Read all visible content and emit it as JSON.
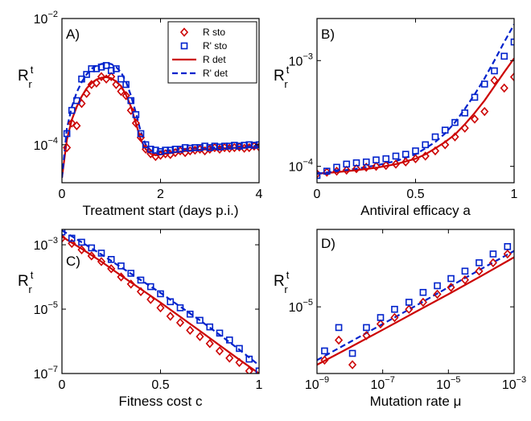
{
  "colors": {
    "R": "#cc0000",
    "Rprime": "#0022cc"
  },
  "legend": {
    "entries": [
      {
        "key": "r_sto",
        "label": "R sto"
      },
      {
        "key": "rp_sto",
        "label": "R' sto"
      },
      {
        "key": "r_det",
        "label": "R det"
      },
      {
        "key": "rp_det",
        "label": "R' det"
      }
    ]
  },
  "chart_data": [
    {
      "panel": "A)",
      "type": "scatter",
      "xlabel": "Treatment start (days p.i.)",
      "ylabel_main": "R",
      "ylabel_sup": "t",
      "ylabel_sub": "r",
      "xscale": "linear",
      "yscale": "log",
      "xlim": [
        0,
        4
      ],
      "ylim": [
        2.5e-05,
        0.01
      ],
      "xticks": [
        0,
        2,
        4
      ],
      "xticklabels": [
        "0",
        "2",
        "4"
      ],
      "yticks": [
        0.0001,
        0.01
      ],
      "yticklabels": [
        "10^-4",
        "10^-2"
      ],
      "legend_position": "top-right",
      "series": [
        {
          "key": "r_sto",
          "marker": "diamond",
          "x": [
            0.1,
            0.2,
            0.3,
            0.4,
            0.5,
            0.6,
            0.7,
            0.8,
            0.9,
            1.0,
            1.1,
            1.2,
            1.3,
            1.4,
            1.5,
            1.6,
            1.7,
            1.8,
            1.9,
            2.0,
            2.1,
            2.2,
            2.3,
            2.4,
            2.5,
            2.6,
            2.7,
            2.8,
            2.9,
            3.0,
            3.1,
            3.2,
            3.3,
            3.4,
            3.5,
            3.6,
            3.7,
            3.8,
            3.9,
            4.0
          ],
          "y": [
            9e-05,
            0.00022,
            0.0002,
            0.00045,
            0.00065,
            0.0009,
            0.00095,
            0.0012,
            0.0011,
            0.0012,
            0.0009,
            0.0007,
            0.0006,
            0.00035,
            0.00022,
            0.00013,
            8.5e-05,
            7.2e-05,
            6.5e-05,
            6.8e-05,
            7.2e-05,
            7e-05,
            7.5e-05,
            8e-05,
            7.5e-05,
            8e-05,
            8.2e-05,
            8.5e-05,
            8e-05,
            8.5e-05,
            9e-05,
            8.5e-05,
            9e-05,
            8.8e-05,
            9e-05,
            9.2e-05,
            8.8e-05,
            9e-05,
            9.5e-05,
            9.2e-05
          ]
        },
        {
          "key": "rp_sto",
          "marker": "square",
          "x": [
            0.1,
            0.2,
            0.3,
            0.4,
            0.5,
            0.6,
            0.7,
            0.8,
            0.9,
            1.0,
            1.1,
            1.2,
            1.3,
            1.4,
            1.5,
            1.6,
            1.7,
            1.8,
            1.9,
            2.0,
            2.1,
            2.2,
            2.3,
            2.4,
            2.5,
            2.6,
            2.7,
            2.8,
            2.9,
            3.0,
            3.1,
            3.2,
            3.3,
            3.4,
            3.5,
            3.6,
            3.7,
            3.8,
            3.9,
            4.0
          ],
          "y": [
            0.00015,
            0.00035,
            0.0005,
            0.0011,
            0.0013,
            0.0016,
            0.0016,
            0.0017,
            0.0018,
            0.0015,
            0.0016,
            0.0011,
            0.0009,
            0.0005,
            0.0003,
            0.00015,
            0.0001,
            8.5e-05,
            8.2e-05,
            7.8e-05,
            8.2e-05,
            8.2e-05,
            8.5e-05,
            8.5e-05,
            9e-05,
            8.8e-05,
            9e-05,
            9e-05,
            9.5e-05,
            9e-05,
            9.5e-05,
            9.2e-05,
            9.5e-05,
            9.5e-05,
            9.8e-05,
            9.5e-05,
            9.8e-05,
            0.0001,
            9.8e-05,
            0.0001
          ]
        },
        {
          "key": "r_det",
          "marker": "line-solid",
          "x": [
            0,
            0.1,
            0.2,
            0.3,
            0.4,
            0.5,
            0.6,
            0.7,
            0.8,
            0.9,
            1.0,
            1.1,
            1.2,
            1.3,
            1.4,
            1.5,
            1.6,
            1.7,
            1.8,
            1.9,
            2.0,
            2.2,
            2.4,
            2.6,
            2.8,
            3.0,
            3.2,
            3.4,
            3.6,
            3.8,
            4.0
          ],
          "y": [
            3e-05,
            0.00012,
            0.00025,
            0.0004,
            0.00058,
            0.00078,
            0.00095,
            0.00108,
            0.00115,
            0.00118,
            0.00113,
            0.001,
            0.00085,
            0.00062,
            0.0004,
            0.00022,
            0.00012,
            8.5e-05,
            7.2e-05,
            6.8e-05,
            7e-05,
            7.4e-05,
            7.8e-05,
            8.1e-05,
            8.3e-05,
            8.5e-05,
            8.7e-05,
            8.9e-05,
            9e-05,
            9.1e-05,
            9.2e-05
          ]
        },
        {
          "key": "rp_det",
          "marker": "line-dashed",
          "x": [
            0,
            0.1,
            0.2,
            0.3,
            0.4,
            0.5,
            0.6,
            0.7,
            0.8,
            0.9,
            1.0,
            1.1,
            1.2,
            1.3,
            1.4,
            1.5,
            1.6,
            1.7,
            1.8,
            1.9,
            2.0,
            2.2,
            2.4,
            2.6,
            2.8,
            3.0,
            3.2,
            3.4,
            3.6,
            3.8,
            4.0
          ],
          "y": [
            3e-05,
            0.00018,
            0.0004,
            0.00068,
            0.00098,
            0.0013,
            0.0016,
            0.0018,
            0.0019,
            0.00195,
            0.0019,
            0.0017,
            0.0014,
            0.001,
            0.0006,
            0.00032,
            0.00016,
            0.0001,
            8.2e-05,
            7.8e-05,
            7.9e-05,
            8.2e-05,
            8.5e-05,
            8.7e-05,
            8.9e-05,
            9e-05,
            9.1e-05,
            9.3e-05,
            9.4e-05,
            9.5e-05,
            9.6e-05
          ]
        }
      ]
    },
    {
      "panel": "B)",
      "type": "scatter",
      "xlabel": "Antiviral efficacy a",
      "ylabel_main": "R",
      "ylabel_sup": "t",
      "ylabel_sub": "r",
      "xscale": "linear",
      "yscale": "log",
      "xlim": [
        0,
        1
      ],
      "ylim": [
        7e-05,
        0.0025
      ],
      "xticks": [
        0,
        0.5,
        1
      ],
      "xticklabels": [
        "0",
        "0.5",
        "1"
      ],
      "yticks": [
        0.0001,
        0.001
      ],
      "yticklabels": [
        "10^-4",
        "10^-3"
      ],
      "series": [
        {
          "key": "r_sto",
          "marker": "diamond",
          "x": [
            0,
            0.05,
            0.1,
            0.15,
            0.2,
            0.25,
            0.3,
            0.35,
            0.4,
            0.45,
            0.5,
            0.55,
            0.6,
            0.65,
            0.7,
            0.75,
            0.8,
            0.85,
            0.9,
            0.95,
            1.0
          ],
          "y": [
            8.5e-05,
            8.8e-05,
            9e-05,
            9.2e-05,
            9.5e-05,
            9.8e-05,
            0.0001,
            0.000102,
            0.000105,
            0.00011,
            0.000118,
            0.000125,
            0.00014,
            0.00016,
            0.00019,
            0.00023,
            0.00028,
            0.00033,
            0.00065,
            0.00055,
            0.0007
          ]
        },
        {
          "key": "rp_sto",
          "marker": "square",
          "x": [
            0,
            0.05,
            0.1,
            0.15,
            0.2,
            0.25,
            0.3,
            0.35,
            0.4,
            0.45,
            0.5,
            0.55,
            0.6,
            0.65,
            0.7,
            0.75,
            0.8,
            0.85,
            0.9,
            0.95,
            1.0
          ],
          "y": [
            8.2e-05,
            9e-05,
            9.8e-05,
            0.000105,
            0.000108,
            0.00011,
            0.000115,
            0.000118,
            0.000125,
            0.00013,
            0.00014,
            0.00016,
            0.00019,
            0.00022,
            0.00026,
            0.00032,
            0.00045,
            0.0006,
            0.0008,
            0.0011,
            0.0015
          ]
        },
        {
          "key": "r_det",
          "marker": "line-solid",
          "x": [
            0,
            0.1,
            0.2,
            0.3,
            0.4,
            0.5,
            0.55,
            0.6,
            0.65,
            0.7,
            0.75,
            0.8,
            0.85,
            0.9,
            0.95,
            1.0
          ],
          "y": [
            8.5e-05,
            8.8e-05,
            9.2e-05,
            9.7e-05,
            0.000105,
            0.000118,
            0.00013,
            0.000148,
            0.00017,
            0.0002,
            0.00025,
            0.00032,
            0.00042,
            0.00057,
            0.00078,
            0.00105
          ]
        },
        {
          "key": "rp_det",
          "marker": "line-dashed",
          "x": [
            0,
            0.1,
            0.2,
            0.3,
            0.4,
            0.5,
            0.55,
            0.6,
            0.65,
            0.7,
            0.75,
            0.8,
            0.85,
            0.9,
            0.95,
            1.0
          ],
          "y": [
            8.5e-05,
            9e-05,
            9.5e-05,
            0.000102,
            0.000112,
            0.00013,
            0.000148,
            0.00017,
            0.000205,
            0.00026,
            0.00035,
            0.00048,
            0.00068,
            0.001,
            0.0015,
            0.0022
          ]
        }
      ]
    },
    {
      "panel": "C)",
      "type": "scatter",
      "xlabel": "Fitness cost c",
      "ylabel_main": "R",
      "ylabel_sup": "t",
      "ylabel_sub": "r",
      "xscale": "linear",
      "yscale": "log",
      "xlim": [
        0,
        1
      ],
      "ylim": [
        1e-07,
        0.003
      ],
      "xticks": [
        0,
        0.5,
        1
      ],
      "xticklabels": [
        "0",
        "0.5",
        "1"
      ],
      "yticks": [
        1e-07,
        1e-05,
        0.001
      ],
      "yticklabels": [
        "10^-7",
        "10^-5",
        "10^-3"
      ],
      "series": [
        {
          "key": "r_sto",
          "marker": "diamond",
          "x": [
            0,
            0.05,
            0.1,
            0.15,
            0.2,
            0.25,
            0.3,
            0.35,
            0.4,
            0.45,
            0.5,
            0.55,
            0.6,
            0.65,
            0.7,
            0.75,
            0.8,
            0.85,
            0.9,
            0.95
          ],
          "y": [
            0.0016,
            0.0011,
            0.0007,
            0.00045,
            0.0003,
            0.00018,
            0.0001,
            6e-05,
            3.5e-05,
            2e-05,
            1.1e-05,
            6e-06,
            3.8e-06,
            2.2e-06,
            1.4e-06,
            8.5e-07,
            5e-07,
            3e-07,
            2.2e-07,
            1.2e-07
          ]
        },
        {
          "key": "rp_sto",
          "marker": "square",
          "x": [
            0,
            0.05,
            0.1,
            0.15,
            0.2,
            0.25,
            0.3,
            0.35,
            0.4,
            0.45,
            0.5,
            0.55,
            0.6,
            0.65,
            0.7,
            0.75,
            0.8,
            0.85,
            0.9,
            0.95,
            1.0
          ],
          "y": [
            0.0025,
            0.0016,
            0.0012,
            0.0008,
            0.00055,
            0.00035,
            0.00022,
            0.00013,
            8e-05,
            5e-05,
            3e-05,
            1.7e-05,
            1.1e-05,
            7e-06,
            4.5e-06,
            2.8e-06,
            1.8e-06,
            1.1e-06,
            6e-07,
            2.8e-07,
            1.2e-07
          ]
        },
        {
          "key": "r_det",
          "marker": "line-solid",
          "x": [
            0,
            0.1,
            0.2,
            0.3,
            0.4,
            0.5,
            0.6,
            0.7,
            0.8,
            0.9,
            1.0
          ],
          "y": [
            0.0018,
            0.00075,
            0.0003,
            0.00011,
            4.2e-05,
            1.6e-05,
            5.8e-06,
            2.1e-06,
            7.5e-07,
            2.7e-07,
            1e-07
          ]
        },
        {
          "key": "rp_det",
          "marker": "line-dashed",
          "x": [
            0,
            0.1,
            0.2,
            0.3,
            0.4,
            0.5,
            0.6,
            0.7,
            0.8,
            0.9,
            1.0
          ],
          "y": [
            0.0028,
            0.0012,
            0.0005,
            0.0002,
            8e-05,
            3.2e-05,
            1.2e-05,
            4.5e-06,
            1.6e-06,
            5.5e-07,
            1.8e-07
          ]
        }
      ]
    },
    {
      "panel": "D)",
      "type": "scatter",
      "xlabel": "Mutation rate μ",
      "ylabel_main": "R",
      "ylabel_sup": "t",
      "ylabel_sub": "r",
      "xscale": "log",
      "yscale": "log",
      "xlim": [
        1e-09,
        0.001
      ],
      "ylim": [
        2.5e-06,
        5e-05
      ],
      "xticks": [
        1e-09,
        1e-07,
        1e-05,
        0.001
      ],
      "xticklabels": [
        "10^-9",
        "10^-7",
        "10^-5",
        "10^-3"
      ],
      "yticks": [
        1e-05
      ],
      "yticklabels": [
        "10^-5"
      ],
      "series": [
        {
          "key": "r_sto",
          "marker": "diamond",
          "x": [
            1.7e-09,
            4.6e-09,
            1.2e-08,
            3.2e-08,
            8.6e-08,
            2.3e-07,
            6.3e-07,
            1.7e-06,
            4.6e-06,
            1.2e-05,
            3.2e-05,
            8.6e-05,
            0.00023,
            0.00063
          ],
          "y": [
            3.3e-06,
            5e-06,
            3e-06,
            5.5e-06,
            7e-06,
            8e-06,
            9.5e-06,
            1.1e-05,
            1.3e-05,
            1.5e-05,
            1.75e-05,
            2.1e-05,
            2.5e-05,
            3e-05
          ]
        },
        {
          "key": "rp_sto",
          "marker": "square",
          "x": [
            1.7e-09,
            4.6e-09,
            1.2e-08,
            3.2e-08,
            8.6e-08,
            2.3e-07,
            6.3e-07,
            1.7e-06,
            4.6e-06,
            1.2e-05,
            3.2e-05,
            8.6e-05,
            0.00023,
            0.00063
          ],
          "y": [
            4e-06,
            6.5e-06,
            3.8e-06,
            6.5e-06,
            8e-06,
            9.5e-06,
            1.1e-05,
            1.35e-05,
            1.55e-05,
            1.8e-05,
            2.1e-05,
            2.5e-05,
            3e-05,
            3.5e-05
          ]
        },
        {
          "key": "r_det",
          "marker": "line-solid",
          "x": [
            1e-09,
            1e-08,
            1e-07,
            1e-06,
            1e-05,
            0.0001,
            0.001
          ],
          "y": [
            3e-06,
            4.3e-06,
            6.2e-06,
            9e-06,
            1.3e-05,
            1.9e-05,
            2.8e-05
          ]
        },
        {
          "key": "rp_det",
          "marker": "line-dashed",
          "x": [
            1e-09,
            1e-08,
            1e-07,
            1e-06,
            1e-05,
            0.0001,
            0.001
          ],
          "y": [
            3.3e-06,
            4.8e-06,
            7e-06,
            1.02e-05,
            1.5e-05,
            2.2e-05,
            3.2e-05
          ]
        }
      ]
    }
  ]
}
